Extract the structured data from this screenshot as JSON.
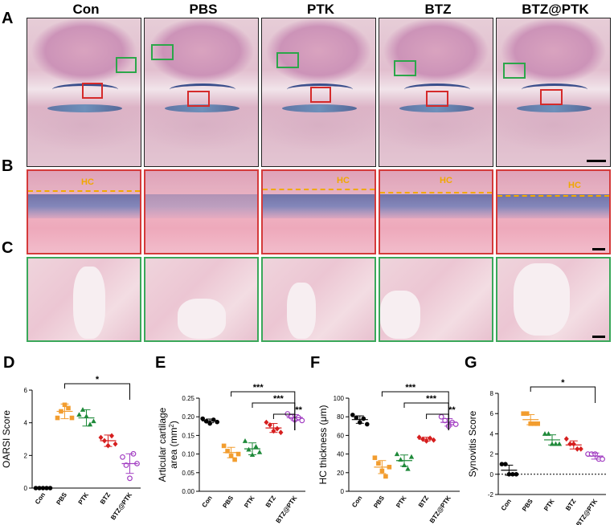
{
  "panel_letters": {
    "a": "A",
    "b": "B",
    "c": "C",
    "d": "D",
    "e": "E",
    "f": "F",
    "g": "G"
  },
  "columns": [
    "Con",
    "PBS",
    "PTK",
    "BTZ",
    "BTZ@PTK"
  ],
  "hc_label": "HC",
  "colors": {
    "Con": "#000000",
    "PBS": "#f29d2f",
    "PTK": "#1f8a3a",
    "BTZ": "#d61f1f",
    "BTZ@PTK": "#a23ec2",
    "green_box": "#2ca64a",
    "red_box": "#d52a2a",
    "hc": "#f0a800"
  },
  "chart_data": [
    {
      "type": "scatter",
      "panel": "D",
      "ylabel": "OARSI Score",
      "categories": [
        "Con",
        "PBS",
        "PTK",
        "BTZ",
        "BTZ@PTK"
      ],
      "ylim": [
        0,
        6
      ],
      "yticks": [
        0,
        2,
        4,
        6
      ],
      "points": [
        [
          0,
          0,
          0,
          0,
          0
        ],
        [
          4.3,
          4.7,
          5.1,
          4.9,
          4.3
        ],
        [
          4.5,
          4.8,
          4.4,
          3.9,
          4.1
        ],
        [
          3.1,
          2.9,
          2.6,
          3.2,
          2.7
        ],
        [
          1.9,
          1.4,
          0.6,
          2.1,
          1.5
        ]
      ],
      "mean": [
        0,
        4.7,
        4.3,
        2.9,
        1.5
      ],
      "sd": [
        0,
        0.45,
        0.5,
        0.35,
        0.6
      ],
      "significance": [
        {
          "from": "PBS",
          "to": "BTZ@PTK",
          "label": "*"
        }
      ]
    },
    {
      "type": "scatter",
      "panel": "E",
      "ylabel": "Articular cartilage area (mm2)",
      "ylabel_line1": "Articular cartilage",
      "ylabel_line2": "area (mm",
      "ylabel_sup": "2",
      "ylabel_close": ")",
      "categories": [
        "Con",
        "PBS",
        "PTK",
        "BTZ",
        "BTZ@PTK"
      ],
      "ylim": [
        0,
        0.25
      ],
      "yticks": [
        0.0,
        0.05,
        0.1,
        0.15,
        0.2,
        0.25
      ],
      "ytick_labels": [
        "0.00",
        "0.05",
        "0.10",
        "0.15",
        "0.20",
        "0.25"
      ],
      "points": [
        [
          0.195,
          0.188,
          0.182,
          0.192,
          0.186
        ],
        [
          0.122,
          0.108,
          0.095,
          0.085,
          0.1
        ],
        [
          0.135,
          0.112,
          0.098,
          0.12,
          0.105
        ],
        [
          0.185,
          0.178,
          0.162,
          0.168,
          0.158
        ],
        [
          0.208,
          0.2,
          0.192,
          0.198,
          0.19
        ]
      ],
      "mean": [
        0.189,
        0.104,
        0.114,
        0.17,
        0.198
      ],
      "sd": [
        0.005,
        0.014,
        0.016,
        0.012,
        0.008
      ],
      "significance": [
        {
          "from": "PBS",
          "to": "BTZ@PTK",
          "label": "***"
        },
        {
          "from": "PTK",
          "to": "BTZ@PTK",
          "label": "***"
        },
        {
          "from": "BTZ",
          "to": "BTZ@PTK",
          "label": "**"
        }
      ]
    },
    {
      "type": "scatter",
      "panel": "F",
      "ylabel": "HC thickness (μm)",
      "categories": [
        "Con",
        "PBS",
        "PTK",
        "BTZ",
        "BTZ@PTK"
      ],
      "ylim": [
        0,
        100
      ],
      "yticks": [
        0,
        20,
        40,
        60,
        80,
        100
      ],
      "points": [
        [
          82,
          79,
          74,
          78,
          72
        ],
        [
          36,
          30,
          22,
          16,
          26
        ],
        [
          40,
          34,
          28,
          24,
          37
        ],
        [
          58,
          56,
          54,
          57,
          55
        ],
        [
          80,
          76,
          70,
          74,
          72
        ]
      ],
      "mean": [
        77,
        26,
        33,
        56,
        74
      ],
      "sd": [
        4,
        7,
        6,
        2,
        4
      ],
      "significance": [
        {
          "from": "PBS",
          "to": "BTZ@PTK",
          "label": "***"
        },
        {
          "from": "PTK",
          "to": "BTZ@PTK",
          "label": "***"
        },
        {
          "from": "BTZ",
          "to": "BTZ@PTK",
          "label": "**"
        }
      ]
    },
    {
      "type": "scatter",
      "panel": "G",
      "ylabel": "Synovitis Score",
      "categories": [
        "Con",
        "PBS",
        "PTK",
        "BTZ",
        "BTZ@PTK"
      ],
      "ylim": [
        -2,
        8
      ],
      "yticks": [
        -2,
        0,
        2,
        4,
        6,
        8
      ],
      "points": [
        [
          1,
          1,
          0,
          0,
          0
        ],
        [
          6,
          6,
          5,
          5,
          5
        ],
        [
          4,
          4,
          3,
          3,
          3
        ],
        [
          3.5,
          3,
          3,
          2.5,
          2.5
        ],
        [
          2,
          2,
          2,
          1.5,
          1.5
        ]
      ],
      "mean": [
        0.4,
        5.4,
        3.4,
        2.9,
        1.8
      ],
      "sd": [
        0.5,
        0.5,
        0.5,
        0.4,
        0.3
      ],
      "reference_line": 0,
      "significance": [
        {
          "from": "PBS",
          "to": "BTZ@PTK",
          "label": "*"
        }
      ]
    }
  ]
}
